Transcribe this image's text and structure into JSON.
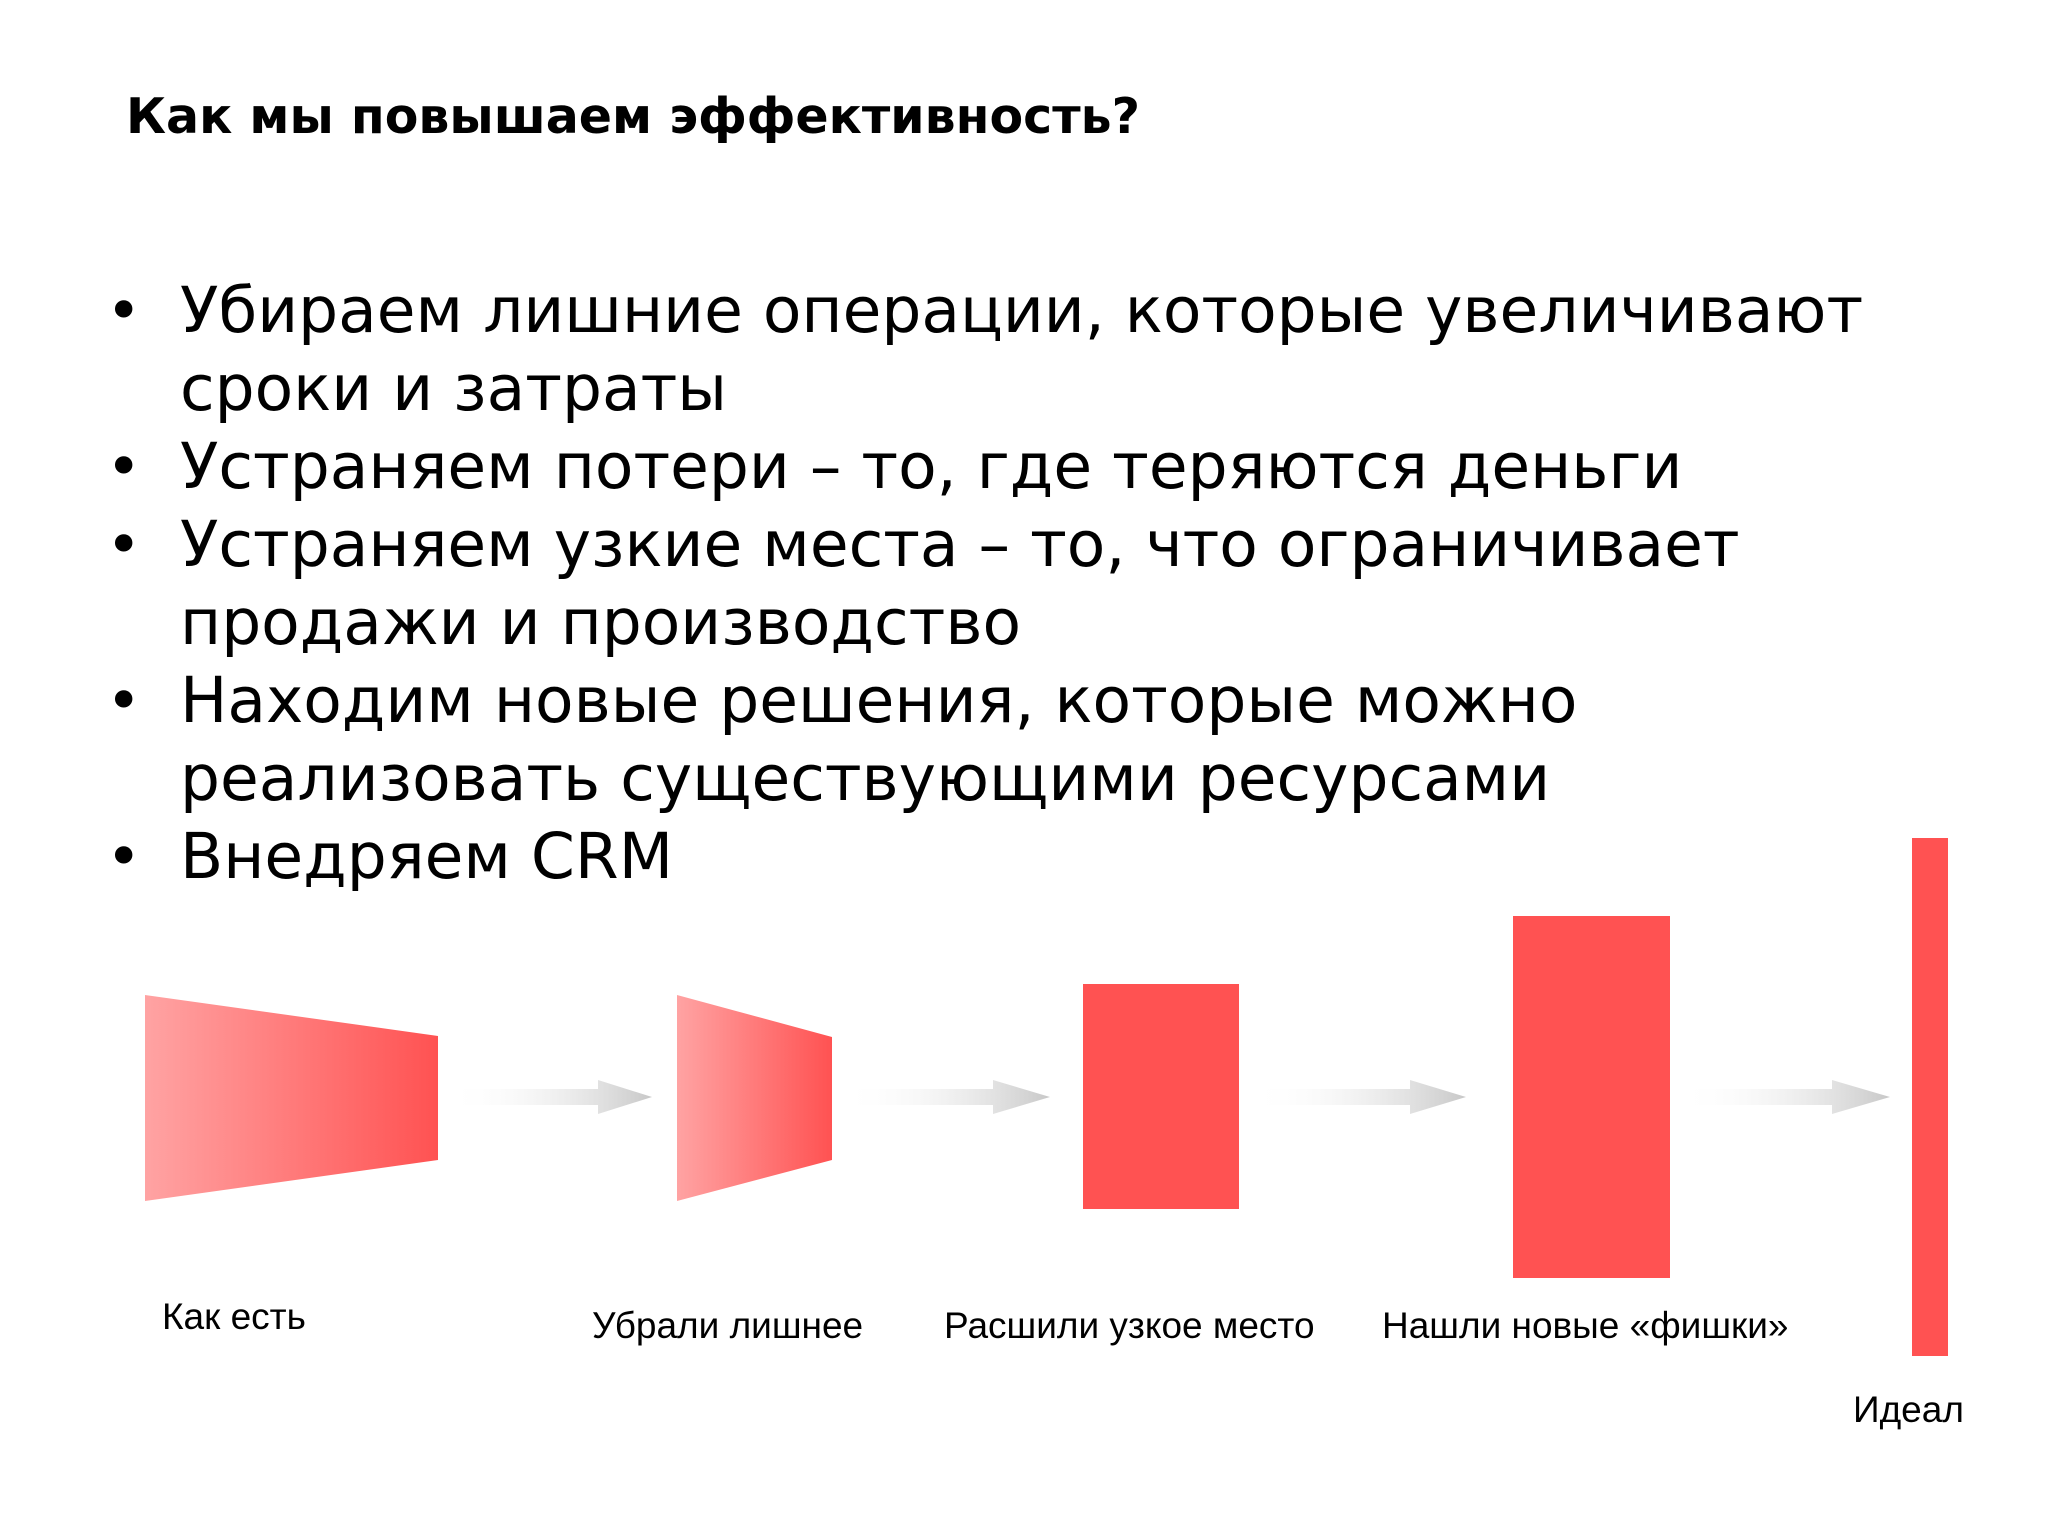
{
  "slide": {
    "title": "Как мы повышаем эффективность?",
    "bullets": [
      {
        "line1": "Убираем лишние операции, которые увеличивают",
        "line2": "сроки и затраты"
      },
      {
        "line1": "Устраняем потери – то, где теряются деньги",
        "line2": ""
      },
      {
        "line1": "Устраняем узкие места – то, что ограничивает",
        "line2": "продажи и производство"
      },
      {
        "line1": "Находим новые решения, которые можно",
        "line2": "реализовать существующими ресурсами"
      },
      {
        "line1": "Внедряем CRM",
        "line2": ""
      }
    ]
  },
  "diagram": {
    "shape_color": "#ff5252",
    "gradient_start_color": "#ffa3a3",
    "arrow_color": "#c8c8c8",
    "stages": [
      {
        "label": "Как есть",
        "shape": "funnel"
      },
      {
        "label": "Убрали лишнее",
        "shape": "funnel"
      },
      {
        "label": "Расшили узкое место",
        "shape": "rectangle"
      },
      {
        "label": "Нашли новые «фишки»",
        "shape": "rectangle"
      },
      {
        "label": "Идеал",
        "shape": "bar"
      }
    ]
  }
}
